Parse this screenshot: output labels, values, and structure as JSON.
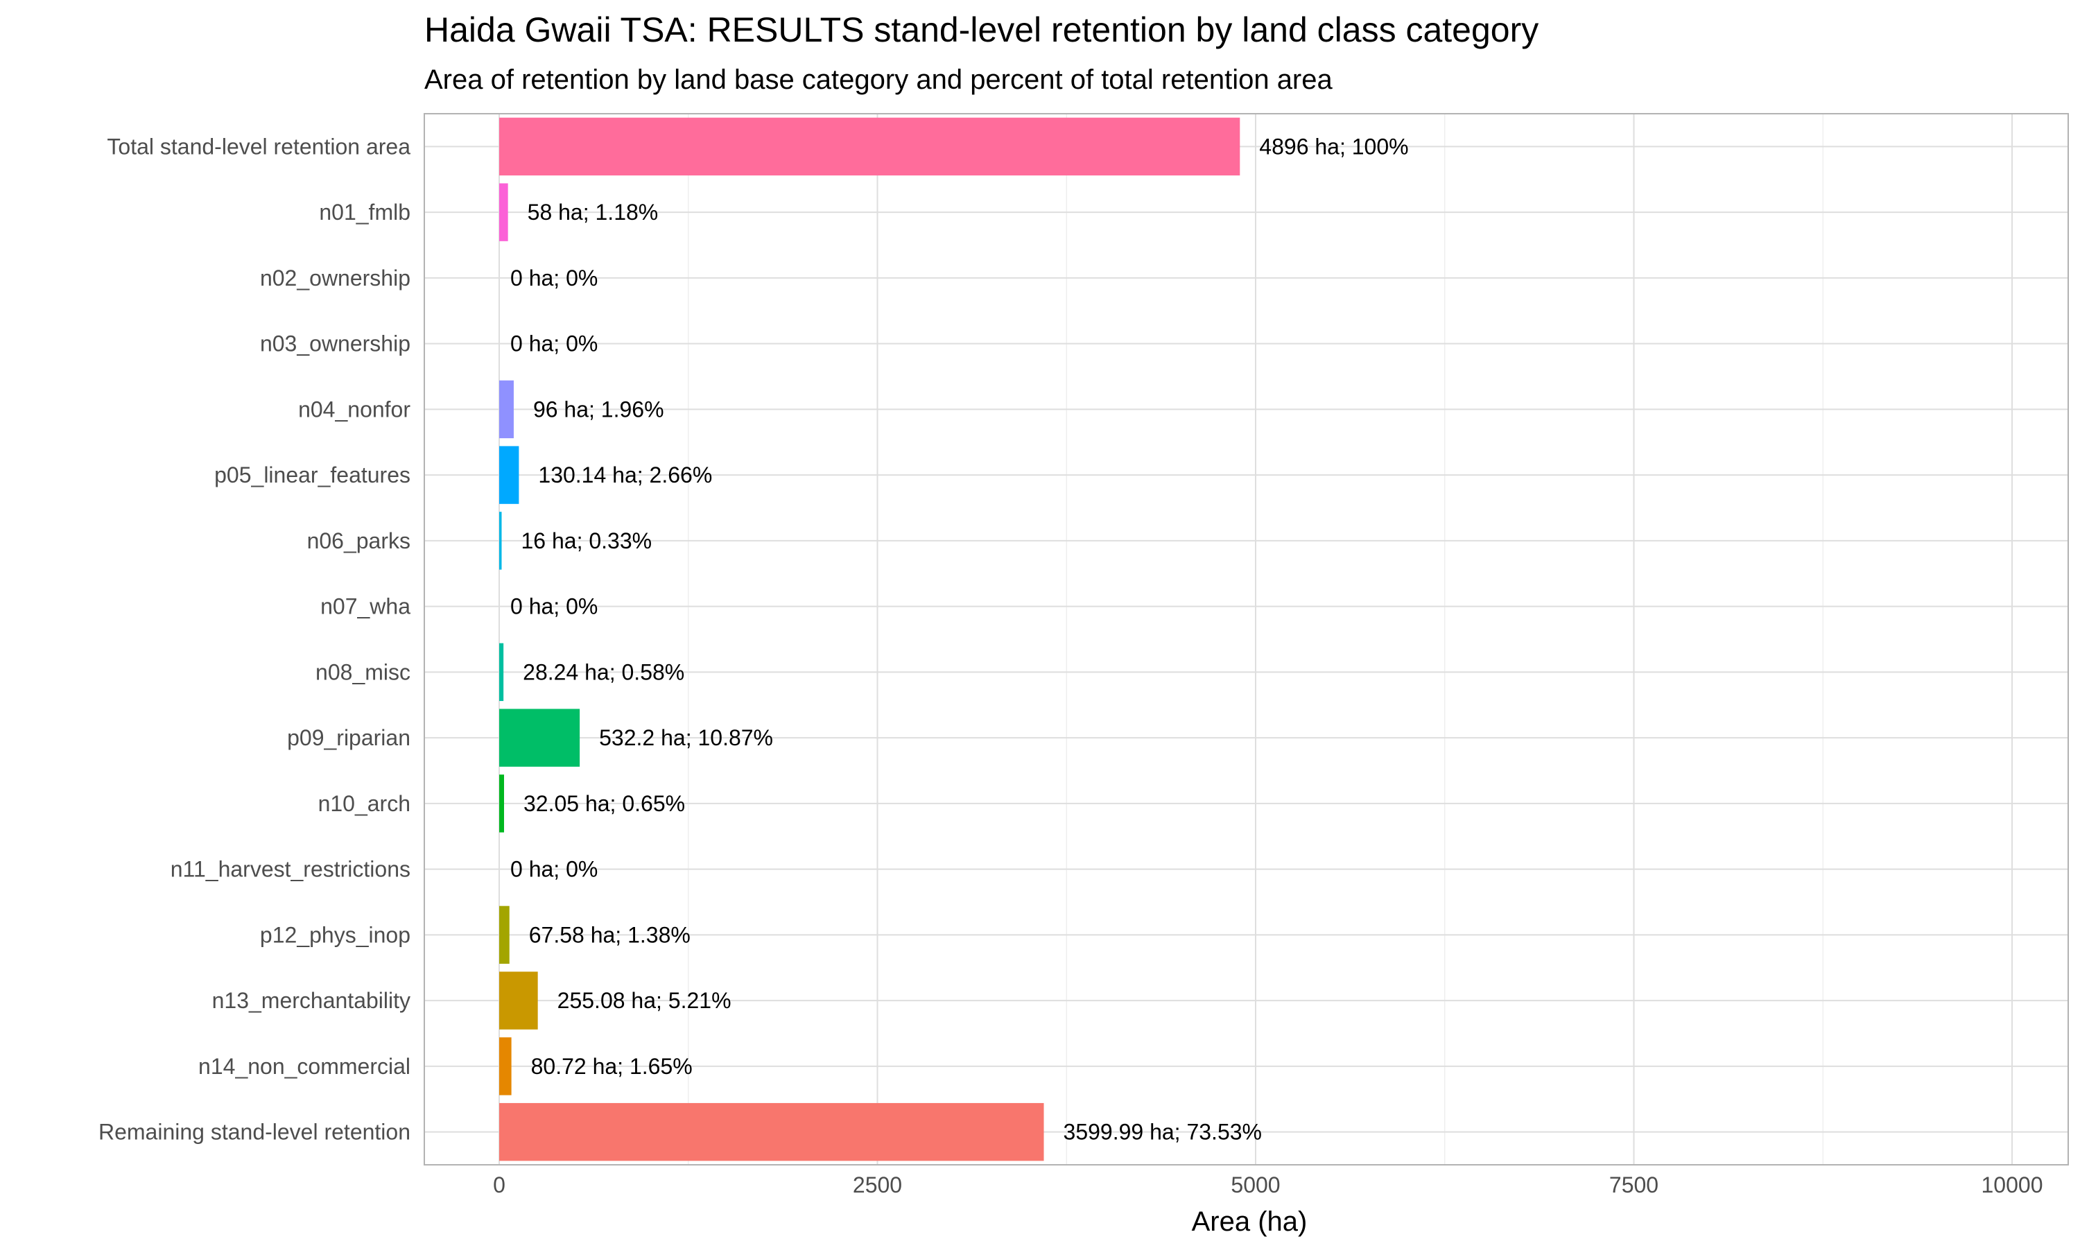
{
  "chart_data": {
    "type": "bar",
    "orientation": "horizontal",
    "title": "Haida Gwaii TSA: RESULTS stand-level retention by land class category",
    "subtitle": "Area of retention by land base category and percent of total retention area",
    "xlabel": "Area (ha)",
    "ylabel": "",
    "xlim": [
      0,
      10000
    ],
    "xticks": [
      0,
      2500,
      5000,
      7500,
      10000
    ],
    "grid": true,
    "legend": "none",
    "categories": [
      "Total stand-level retention area",
      "n01_fmlb",
      "n02_ownership",
      "n03_ownership",
      "n04_nonfor",
      "p05_linear_features",
      "n06_parks",
      "n07_wha",
      "n08_misc",
      "p09_riparian",
      "n10_arch",
      "n11_harvest_restrictions",
      "p12_phys_inop",
      "n13_merchantability",
      "n14_non_commercial",
      "Remaining stand-level retention"
    ],
    "values": [
      4896,
      58,
      0,
      0,
      96,
      130.14,
      16,
      0,
      28.24,
      532.2,
      32.05,
      0,
      67.58,
      255.08,
      80.72,
      3599.99
    ],
    "labels": [
      "4896 ha; 100%",
      "58 ha; 1.18%",
      "0 ha; 0%",
      "0 ha; 0%",
      "96 ha; 1.96%",
      "130.14 ha; 2.66%",
      "16 ha; 0.33%",
      "0 ha; 0%",
      "28.24 ha; 0.58%",
      "532.2 ha; 10.87%",
      "32.05 ha; 0.65%",
      "0 ha; 0%",
      "67.58 ha; 1.38%",
      "255.08 ha; 5.21%",
      "80.72 ha; 1.65%",
      "3599.99 ha; 73.53%"
    ],
    "colors": [
      "#FF6C9B",
      "#FB61D7",
      "#E76BF3",
      "#C77CFF",
      "#8F91FF",
      "#00A9FF",
      "#00B8E7",
      "#00C0B8",
      "#00BFA0",
      "#00BE67",
      "#00B81F",
      "#7CAE00",
      "#A3A500",
      "#C99800",
      "#E58700",
      "#F8766D"
    ]
  }
}
